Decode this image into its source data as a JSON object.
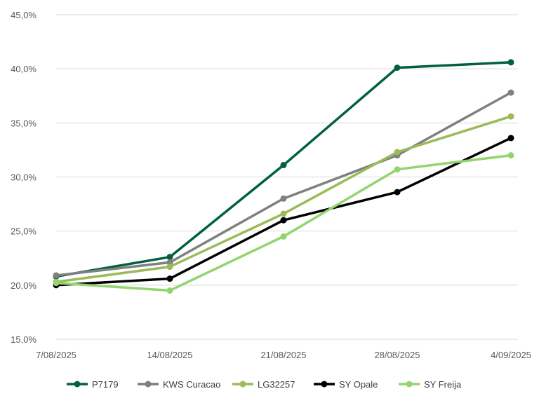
{
  "chart_data": {
    "type": "line",
    "title": "",
    "xlabel": "",
    "ylabel": "",
    "categories": [
      "7/08/2025",
      "14/08/2025",
      "21/08/2025",
      "28/08/2025",
      "4/09/2025"
    ],
    "y_ticks": [
      "15,0%",
      "20,0%",
      "25,0%",
      "30,0%",
      "35,0%",
      "40,0%",
      "45,0%"
    ],
    "ylim": [
      15,
      45
    ],
    "grid": true,
    "legend_position": "bottom",
    "series": [
      {
        "name": "P7179",
        "color": "#00613d",
        "values": [
          20.8,
          22.6,
          31.1,
          40.1,
          40.6
        ]
      },
      {
        "name": "KWS Curacao",
        "color": "#808080",
        "values": [
          20.9,
          22.1,
          28.0,
          32.0,
          37.8
        ]
      },
      {
        "name": "LG32257",
        "color": "#9bbb59",
        "values": [
          20.3,
          21.7,
          26.6,
          32.3,
          35.6
        ]
      },
      {
        "name": "SY Opale",
        "color": "#000000",
        "values": [
          20.0,
          20.6,
          26.0,
          28.6,
          33.6
        ]
      },
      {
        "name": "SY Freija",
        "color": "#92d56e",
        "values": [
          20.2,
          19.5,
          24.5,
          30.7,
          32.0
        ]
      }
    ]
  }
}
